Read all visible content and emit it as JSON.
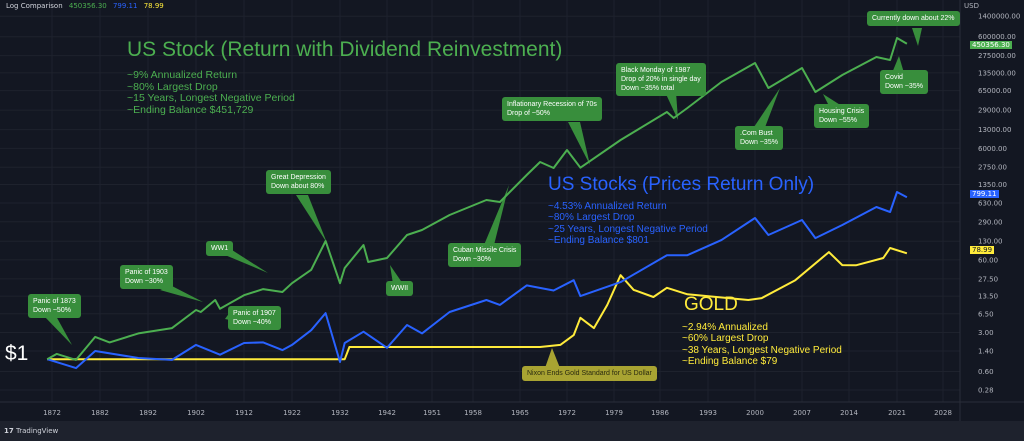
{
  "header": {
    "title": "Log Comparison",
    "values": [
      "450356.30",
      "799.11",
      "78.99"
    ]
  },
  "footer": {
    "brand": "TradingView",
    "logo": "17"
  },
  "currency": "USD",
  "colors": {
    "total_return": "#4caf50",
    "price_return": "#2962ff",
    "gold": "#ffeb3b",
    "background": "#131722",
    "note": "#388e3c"
  },
  "dollar_label": "$1",
  "titles": {
    "stock_total": {
      "title": "US Stock (Return with Dividend Reinvestment)",
      "stats": "~9% Annualized Return\n~80% Largest Drop\n~15 Years, Longest Negative Period\n~Ending Balance $451,729"
    },
    "stock_price": {
      "title": "US Stocks (Prices Return Only)",
      "stats": "~4.53% Annualized Return\n~80% Largest Drop\n~25 Years, Longest Negative Period\n~Ending Balance $801"
    },
    "gold": {
      "title": "GOLD",
      "stats": "~2.94% Annualized\n~60% Largest Drop\n~38 Years, Longest Negative Period\n~Ending Balance $79"
    }
  },
  "notes": {
    "panic1873": "Panic of 1873\nDown ~50%",
    "panic1903": "Panic of 1903\nDown ~30%",
    "ww1": "WW1",
    "depression": "Great Depression\nDown about 80%",
    "panic1907": "Panic of 1907\nDown ~40%",
    "ww2": "WWII",
    "cuban": "Cuban Missile Crisis\nDown ~30%",
    "inflation": "Inflationary Recession of 70s\nDrop of ~50%",
    "blackmonday": "Black Monday of 1987\nDrop of 20% in single day\nDown ~35% total",
    "dotcom": ".Com Bust\nDown ~35%",
    "housing": "Housing Crisis\nDown ~55%",
    "covid": "Covid\nDown ~35%",
    "current": "Currently down about 22%",
    "nixon": "Nixon Ends Gold Standard for US Dollar"
  },
  "chart_data": {
    "type": "line",
    "title": "Log Comparison",
    "yscale": "log",
    "ylabel": "USD",
    "ylim": [
      0.2,
      2000000
    ],
    "x_ticks": [
      1872,
      1882,
      1892,
      1902,
      1912,
      1922,
      1932,
      1942,
      1951,
      1958,
      1965,
      1972,
      1979,
      1986,
      1993,
      2000,
      2007,
      2014,
      2021,
      2028
    ],
    "y_ticks": [
      "1400000.00",
      "600000.00",
      "275000.00",
      "135000.00",
      "65000.00",
      "29000.00",
      "13000.00",
      "6000.00",
      "2750.00",
      "1350.00",
      "630.00",
      "290.00",
      "130.00",
      "60.00",
      "27.50",
      "13.50",
      "6.50",
      "3.00",
      "1.40",
      "0.60",
      "0.28"
    ],
    "grid": true,
    "series": [
      {
        "name": "US Stock Total Return",
        "last": "450356.30",
        "color": "#4caf50",
        "x": [
          1871,
          1873,
          1877,
          1881,
          1884,
          1890,
          1897,
          1902,
          1903,
          1906,
          1907,
          1912,
          1916,
          1920,
          1922,
          1926,
          1929,
          1932,
          1933,
          1937,
          1938,
          1942,
          1946,
          1949,
          1954,
          1960,
          1962,
          1966,
          1968,
          1970,
          1972,
          1974,
          1980,
          1987,
          1988,
          1990,
          1995,
          2000,
          2002,
          2007,
          2009,
          2013,
          2018,
          2020,
          2021,
          2022.5
        ],
        "y": [
          1.0,
          1.24,
          0.97,
          2.5,
          2.0,
          2.9,
          3.6,
          7.6,
          7.0,
          11.5,
          8,
          14,
          18,
          16,
          23,
          40,
          131,
          23,
          43,
          111,
          55,
          65,
          168,
          206,
          383,
          711,
          655,
          1996,
          3413,
          2667,
          5600,
          2700,
          8456,
          26866,
          21000,
          31700,
          92700,
          203000,
          72300,
          165000,
          61400,
          123600,
          260000,
          230000,
          569000,
          450356
        ]
      },
      {
        "name": "US Stock Price Return",
        "last": "799.11",
        "color": "#2962ff",
        "x": [
          1871,
          1877,
          1881,
          1890,
          1897,
          1902,
          1907,
          1912,
          1916,
          1920,
          1922,
          1926,
          1929,
          1932,
          1933,
          1937,
          1942,
          1946,
          1949,
          1954,
          1960,
          1962,
          1966,
          1970,
          1973,
          1974,
          1980,
          1987,
          1990,
          1995,
          2000,
          2002,
          2007,
          2009,
          2013,
          2018,
          2020,
          2021,
          2022.5
        ],
        "y": [
          1.0,
          0.69,
          1.4,
          1.05,
          0.97,
          1.8,
          1.2,
          1.95,
          2.0,
          1.45,
          1.8,
          3.3,
          6.7,
          0.89,
          1.95,
          3.1,
          1.6,
          4.1,
          2.9,
          7.0,
          11.5,
          9.4,
          21,
          17,
          26,
          13.5,
          24,
          73,
          73,
          136,
          339,
          168,
          312,
          148,
          254,
          533,
          433,
          990,
          799
        ]
      },
      {
        "name": "Gold",
        "last": "78.99",
        "color": "#ffeb3b",
        "x": [
          1871,
          1933,
          1934,
          1968,
          1971,
          1973,
          1974,
          1976,
          1978,
          1980,
          1982,
          1985,
          1987,
          1990,
          1999,
          2001,
          2006,
          2011,
          2013,
          2015,
          2019,
          2020,
          2022.5
        ],
        "y": [
          1.0,
          1.0,
          1.65,
          1.65,
          1.8,
          2.7,
          5.5,
          3.6,
          9.4,
          32,
          17.4,
          13,
          19,
          14.5,
          11.5,
          12.4,
          26,
          83,
          48.4,
          48,
          65,
          98,
          79
        ]
      }
    ]
  }
}
